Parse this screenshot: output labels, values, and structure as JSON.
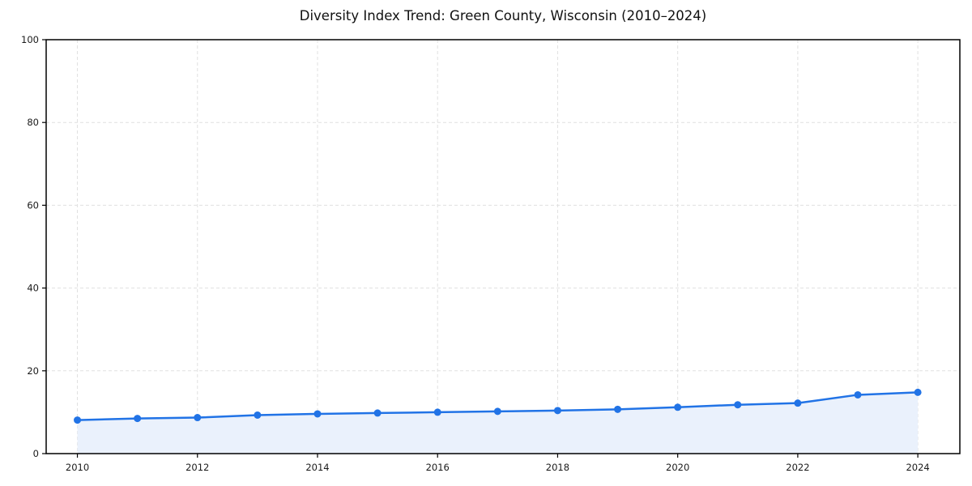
{
  "page": {
    "background": "#ffffff"
  },
  "chart_data": {
    "type": "area",
    "title": "Diversity Index Trend: Green County, Wisconsin (2010–2024)",
    "xlabel": "",
    "ylabel": "",
    "x": [
      2010,
      2011,
      2012,
      2013,
      2014,
      2015,
      2016,
      2017,
      2018,
      2019,
      2020,
      2021,
      2022,
      2023,
      2024
    ],
    "series": [
      {
        "name": "Diversity Index",
        "values": [
          8.1,
          8.5,
          8.7,
          9.3,
          9.6,
          9.8,
          10.0,
          10.2,
          10.4,
          10.7,
          11.2,
          11.8,
          12.2,
          14.2,
          14.8
        ]
      }
    ],
    "xticks": [
      2010,
      2012,
      2014,
      2016,
      2018,
      2020,
      2022,
      2024
    ],
    "yticks": [
      0,
      20,
      40,
      60,
      80,
      100
    ],
    "xlim": [
      2009.48,
      2024.7
    ],
    "ylim": [
      0,
      100
    ],
    "grid": true,
    "grid_style": "dashed",
    "legend_position": "none",
    "marker": "circle",
    "colors": {
      "line": "#2173e6",
      "marker": "#2173e6",
      "fill": "#eaf1fc",
      "grid": "#e0e0e0",
      "axis": "#000000",
      "tick_label": "#1a1a1a",
      "title": "#111111",
      "background": "#ffffff"
    }
  }
}
